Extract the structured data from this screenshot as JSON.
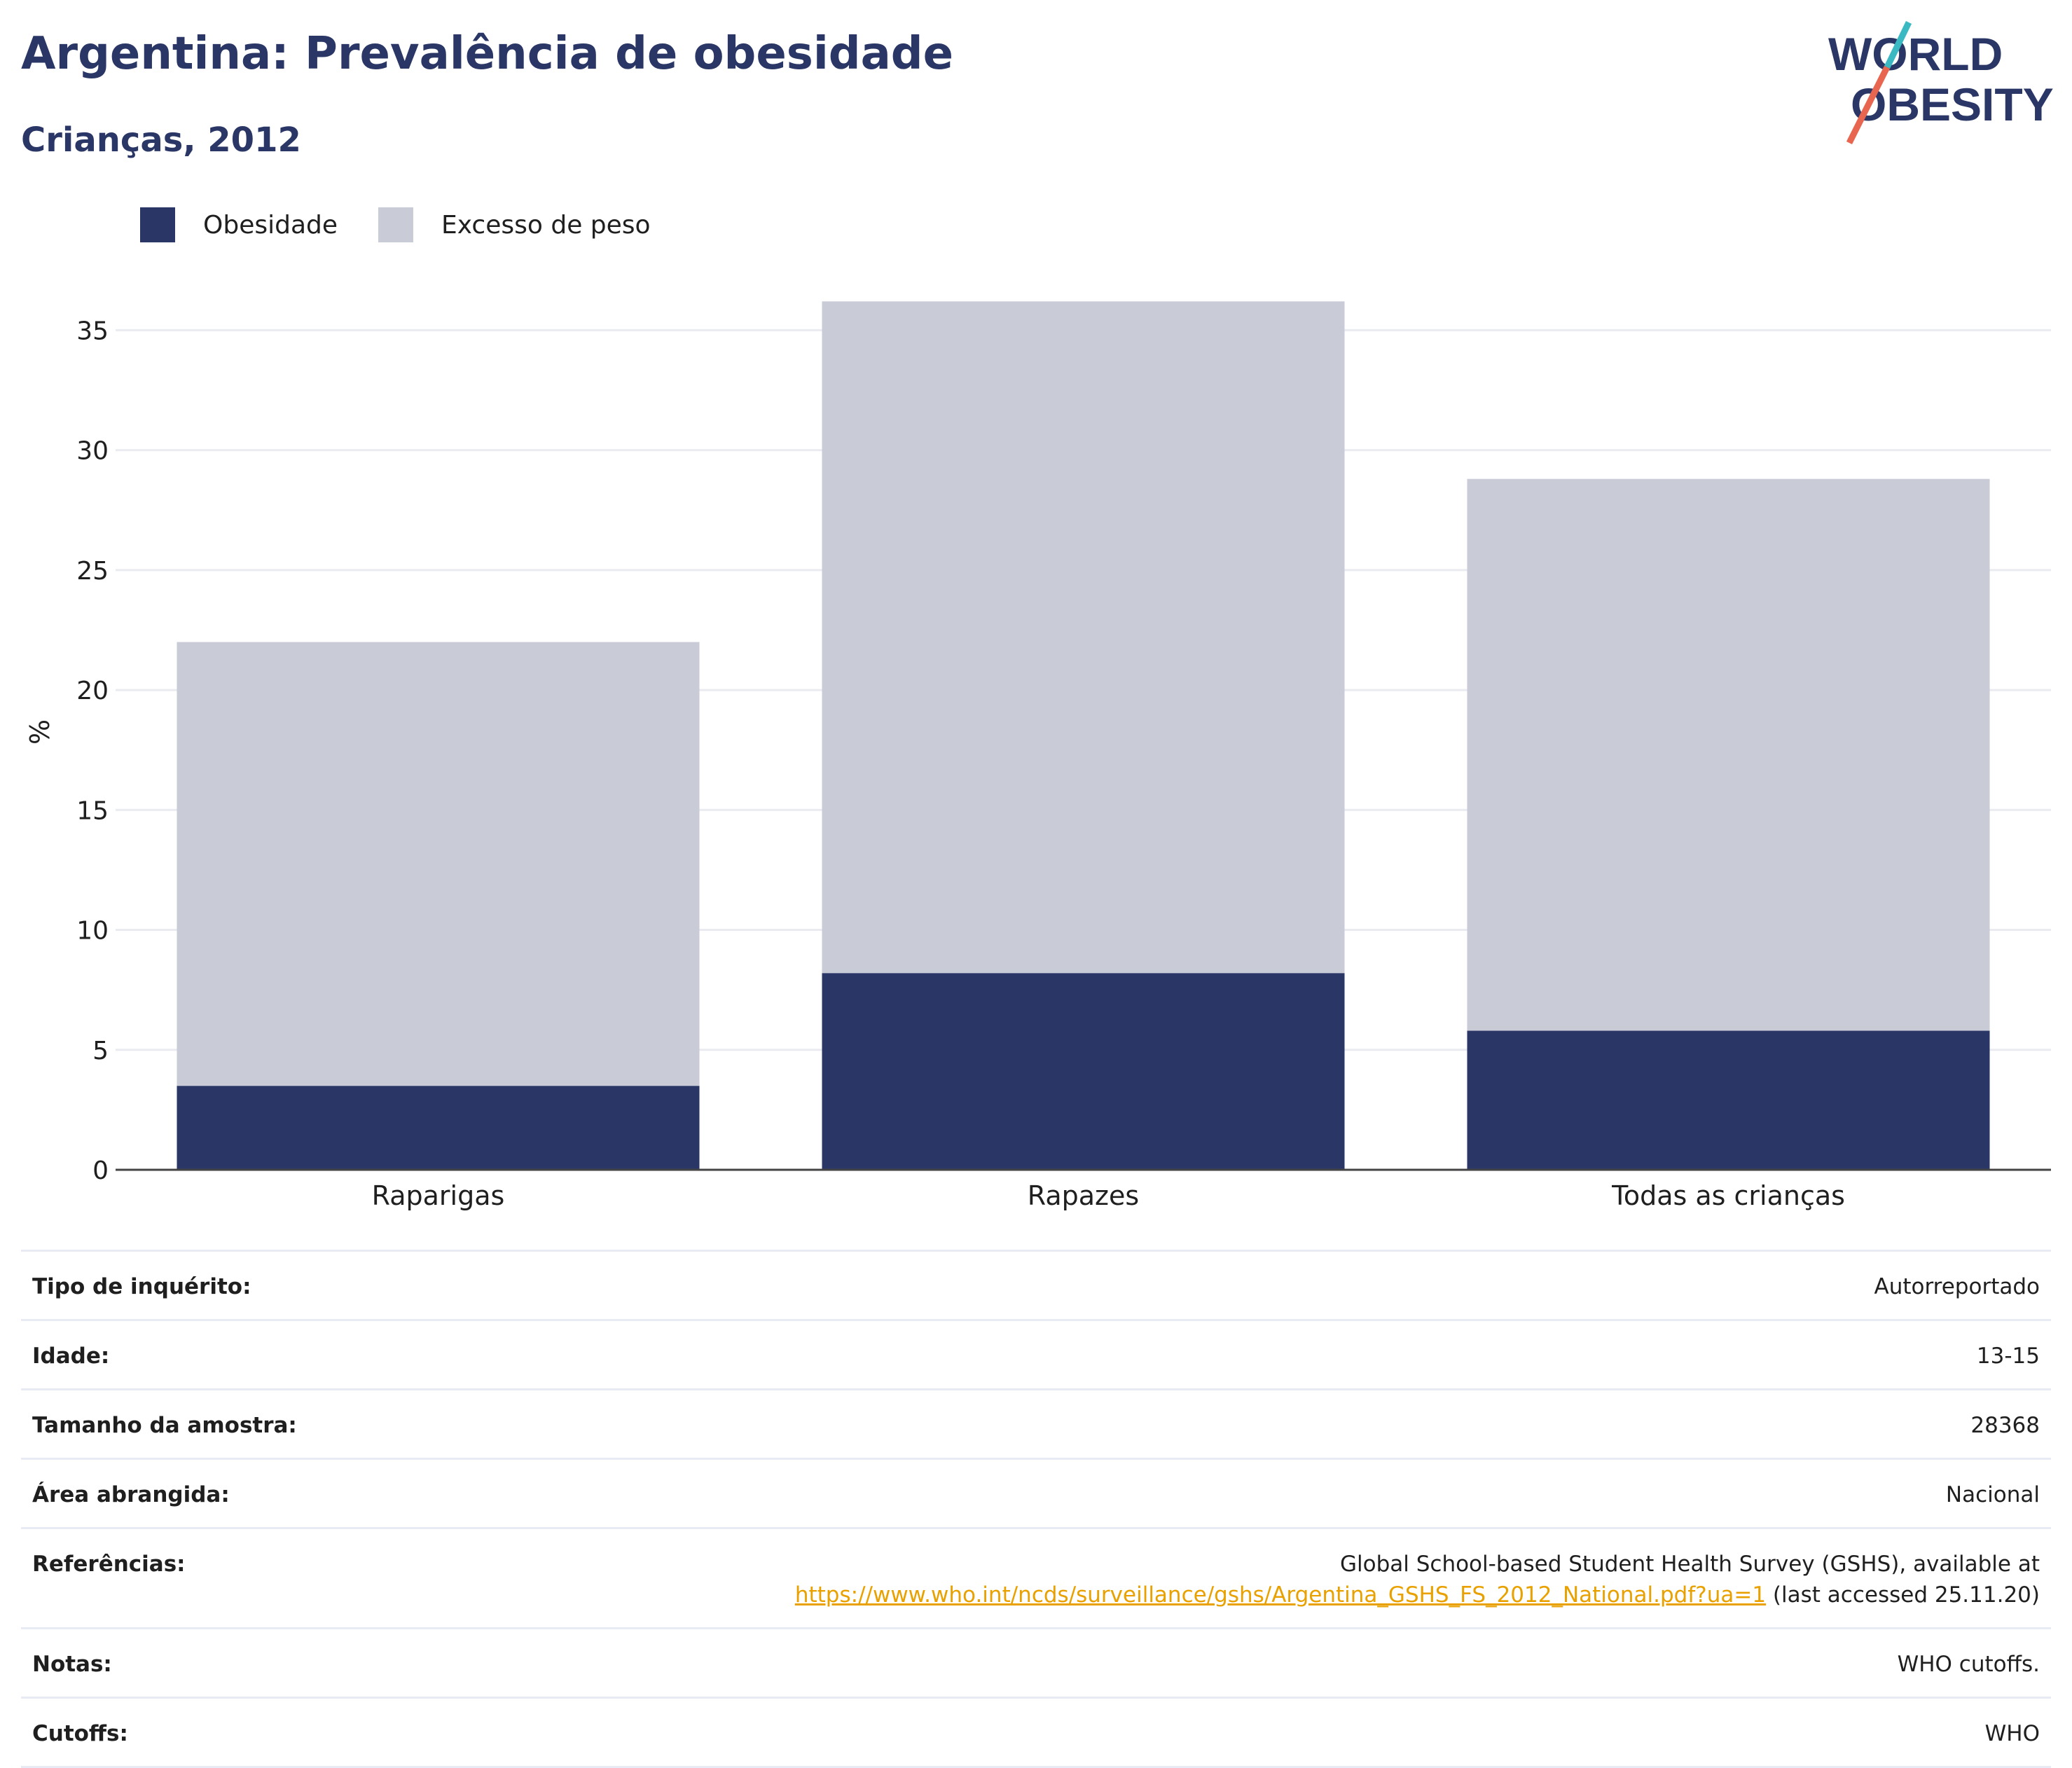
{
  "header": {
    "title": "Argentina: Prevalência de obesidade",
    "subtitle": "Crianças, 2012"
  },
  "logo": {
    "line1": "WORLD",
    "line2": "OBESITY",
    "colors": {
      "text": "#2a3766",
      "slash_top": "#3bb9c2",
      "slash_bottom": "#e8664f"
    }
  },
  "legend": [
    {
      "label": "Obesidade",
      "color": "#2a3766"
    },
    {
      "label": "Excesso de peso",
      "color": "#c9cbd7"
    }
  ],
  "chart_data": {
    "type": "bar",
    "stacked": true,
    "categories": [
      "Raparigas",
      "Rapazes",
      "Todas as crianças"
    ],
    "series": [
      {
        "name": "Obesidade",
        "values": [
          3.5,
          8.2,
          5.8
        ],
        "color": "#2a3766"
      },
      {
        "name": "Excesso de peso",
        "values": [
          18.5,
          28.0,
          23.0
        ],
        "color": "#c9cbd7"
      }
    ],
    "ylabel": "%",
    "ylim": [
      0,
      36.5
    ],
    "yticks": [
      0,
      5,
      10,
      15,
      20,
      25,
      30,
      35
    ],
    "grid": true,
    "legend_position": "top-left"
  },
  "info": [
    {
      "label": "Tipo de inquérito:",
      "value": "Autorreportado"
    },
    {
      "label": "Idade:",
      "value": "13-15"
    },
    {
      "label": "Tamanho da amostra:",
      "value": "28368"
    },
    {
      "label": "Área abrangida:",
      "value": "Nacional"
    },
    {
      "label": "Referências:",
      "value_line1": "Global School-based Student Health Survey (GSHS), available at",
      "link": "https://www.who.int/ncds/surveillance/gshs/Argentina_GSHS_FS_2012_National.pdf?ua=1",
      "value_suffix": " (last accessed 25.11.20)"
    },
    {
      "label": "Notas:",
      "value": "WHO cutoffs."
    },
    {
      "label": "Cutoffs:",
      "value": "WHO"
    }
  ]
}
